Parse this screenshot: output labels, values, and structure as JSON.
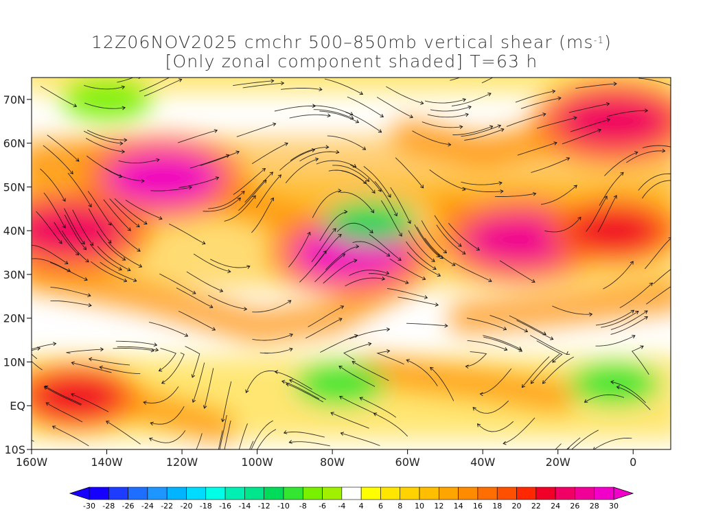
{
  "title": {
    "line1_main": "12Z06NOV2025 cmchr 500–850mb vertical shear (ms",
    "line1_unit_sup": "-1",
    "line1_end": ")",
    "line2": "[Only zonal component shaded] T=63 h"
  },
  "map": {
    "lon_range": [
      -160,
      10
    ],
    "lat_range": [
      -10,
      75
    ],
    "lon_ticks": [
      {
        "value": -160,
        "label": "160W"
      },
      {
        "value": -140,
        "label": "140W"
      },
      {
        "value": -120,
        "label": "120W"
      },
      {
        "value": -100,
        "label": "100W"
      },
      {
        "value": -80,
        "label": "80W"
      },
      {
        "value": -60,
        "label": "60W"
      },
      {
        "value": -40,
        "label": "40W"
      },
      {
        "value": -20,
        "label": "20W"
      },
      {
        "value": 0,
        "label": "0"
      }
    ],
    "lat_ticks": [
      {
        "value": 70,
        "label": "70N"
      },
      {
        "value": 60,
        "label": "60N"
      },
      {
        "value": 50,
        "label": "50N"
      },
      {
        "value": 40,
        "label": "40N"
      },
      {
        "value": 30,
        "label": "30N"
      },
      {
        "value": 20,
        "label": "20N"
      },
      {
        "value": 10,
        "label": "10N"
      },
      {
        "value": 0,
        "label": "EQ"
      },
      {
        "value": -10,
        "label": "10S"
      }
    ],
    "shear_features": [
      {
        "lon": -125,
        "lat": 52,
        "value": 28
      },
      {
        "lon": -150,
        "lat": 40,
        "value": 24
      },
      {
        "lon": -75,
        "lat": 35,
        "value": 28
      },
      {
        "lon": -30,
        "lat": 38,
        "value": 26
      },
      {
        "lon": -5,
        "lat": 40,
        "value": 22
      },
      {
        "lon": -5,
        "lat": 65,
        "value": 24
      },
      {
        "lon": -148,
        "lat": 2,
        "value": 22
      },
      {
        "lon": -78,
        "lat": 5,
        "value": -10
      },
      {
        "lon": -70,
        "lat": 42,
        "value": -12
      },
      {
        "lon": -5,
        "lat": 5,
        "value": -10
      },
      {
        "lon": -140,
        "lat": 70,
        "value": -8
      }
    ]
  },
  "colorbar": {
    "levels": [
      "-30",
      "-28",
      "-26",
      "-24",
      "-22",
      "-20",
      "-18",
      "-16",
      "-14",
      "-12",
      "-10",
      "-8",
      "-6",
      "-4",
      "4",
      "6",
      "8",
      "10",
      "12",
      "14",
      "16",
      "18",
      "20",
      "22",
      "24",
      "26",
      "28",
      "30"
    ],
    "colors": [
      "#1600ff",
      "#1e3cff",
      "#1e6eff",
      "#1e96ff",
      "#00b4ff",
      "#00dcff",
      "#00ffe6",
      "#00f0b4",
      "#00e68c",
      "#00dc5a",
      "#32e632",
      "#78f000",
      "#a0f000",
      "#ffffff",
      "#ffff00",
      "#ffe600",
      "#ffd200",
      "#ffbe00",
      "#ffa500",
      "#ff8c00",
      "#ff6e00",
      "#ff5000",
      "#ff2800",
      "#f00028",
      "#f00064",
      "#f00096",
      "#f000c8"
    ]
  }
}
